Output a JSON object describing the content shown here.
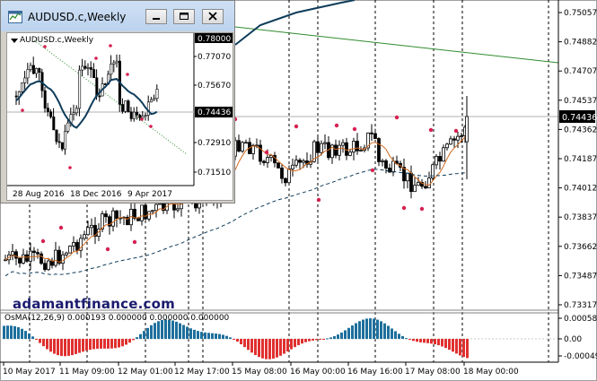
{
  "chart": {
    "price_axis": [
      "0.75057",
      "0.74882",
      "0.74707",
      "0.74537",
      "0.74362",
      "0.74187",
      "0.74012",
      "0.73837",
      "0.73662",
      "0.73487",
      "0.73317"
    ],
    "current_price": "0.74436",
    "time_axis": [
      "10 May 2017",
      "11 May 09:00",
      "12 May 01:00",
      "12 May 17:00",
      "15 May 08:00",
      "16 May 00:00",
      "16 May 16:00",
      "17 May 08:00",
      "18 May 00:00"
    ],
    "watermark": "adamantfinance.com",
    "colors": {
      "bull_candle": "#000000",
      "fast_ma": "#d2691e",
      "slow_ma": "#0f3c5a",
      "trendline": "#2e8b2e",
      "fractal": "#d62050",
      "osma_positive": "#1d6f9c",
      "osma_negative": "#e03030",
      "current_price_line": "#a0a0a0"
    }
  },
  "osma": {
    "title": "OsMA(12,26,9) 0.000193 0.000000 0.000000 0.000000",
    "axis": [
      "0.00058",
      "0.00",
      "-0.00049"
    ]
  },
  "inset": {
    "window_title": "AUDUSD.c,Weekly",
    "chart_label": "AUDUSD.c,Weekly",
    "price_axis": [
      "0.77070",
      "0.75670",
      "0.74436",
      "0.72910",
      "0.71510"
    ],
    "price_top": "0.78000",
    "current_price": "0.74436",
    "time_axis": [
      "28 Aug 2016",
      "18 Dec 2016",
      "9 Apr 2017"
    ]
  }
}
